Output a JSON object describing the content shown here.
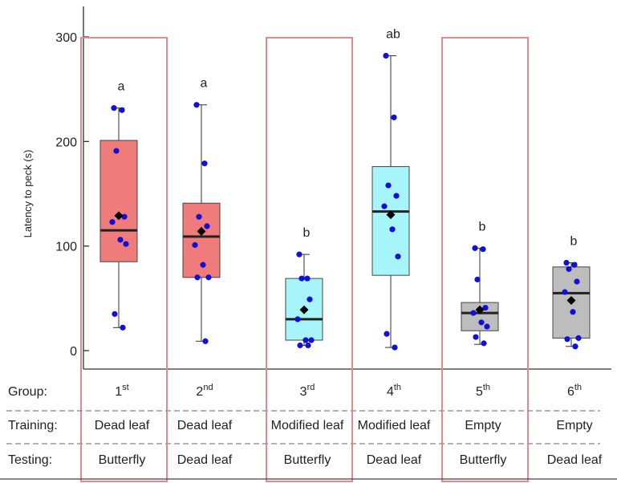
{
  "chart_data": {
    "type": "box",
    "ylabel": "Latency to peck (s)",
    "ylim": [
      0,
      300
    ],
    "yticks": [
      0,
      100,
      200,
      300
    ],
    "row_labels": {
      "group": "Group:",
      "training": "Training:",
      "testing": "Testing:"
    },
    "colors": {
      "dead_leaf": "#ef7b7b",
      "modified_leaf": "#a8f4fb",
      "empty": "#bdbdbd",
      "points": "#1010d8",
      "mean": "#000000",
      "highlight": "#e8878c"
    },
    "groups": [
      {
        "ordinal": "1",
        "suffix": "st",
        "training": "Dead leaf",
        "testing": "Butterfly",
        "color": "#ef7b7b",
        "min": 22,
        "q1": 85,
        "median": 115,
        "q3": 201,
        "max": 232,
        "mean": 129,
        "letter": "a",
        "highlighted": true,
        "points": [
          232,
          230,
          191,
          128,
          123,
          106,
          102,
          35,
          22
        ]
      },
      {
        "ordinal": "2",
        "suffix": "nd",
        "training": "Dead leaf",
        "testing": "Dead leaf",
        "color": "#ef7b7b",
        "min": 9,
        "q1": 70,
        "median": 109,
        "q3": 141,
        "max": 235,
        "mean": 114,
        "letter": "a",
        "highlighted": false,
        "points": [
          235,
          179,
          128,
          119,
          101,
          82,
          70,
          70,
          9
        ]
      },
      {
        "ordinal": "3",
        "suffix": "rd",
        "training": "Modified leaf",
        "testing": "Butterfly",
        "color": "#a8f4fb",
        "min": 5,
        "q1": 10,
        "median": 30,
        "q3": 69,
        "max": 92,
        "mean": 39,
        "letter": "b",
        "highlighted": true,
        "points": [
          92,
          69,
          69,
          49,
          30,
          10,
          10,
          5,
          5
        ]
      },
      {
        "ordinal": "4",
        "suffix": "th",
        "training": "Modified leaf",
        "testing": "Dead leaf",
        "color": "#a8f4fb",
        "min": 3,
        "q1": 72,
        "median": 133,
        "q3": 176,
        "max": 282,
        "mean": 130,
        "letter": "ab",
        "highlighted": false,
        "points": [
          282,
          223,
          158,
          148,
          138,
          116,
          90,
          16,
          3
        ]
      },
      {
        "ordinal": "5",
        "suffix": "th",
        "training": "Empty",
        "testing": "Butterfly",
        "color": "#bdbdbd",
        "min": 6,
        "q1": 19,
        "median": 36,
        "q3": 46,
        "max": 98,
        "mean": 39,
        "letter": "b",
        "highlighted": true,
        "points": [
          98,
          97,
          68,
          41,
          36,
          27,
          23,
          13,
          7
        ]
      },
      {
        "ordinal": "6",
        "suffix": "th",
        "training": "Empty",
        "testing": "Dead leaf",
        "color": "#bdbdbd",
        "min": 4,
        "q1": 12,
        "median": 55,
        "q3": 80,
        "max": 84,
        "mean": 48,
        "letter": "b",
        "highlighted": false,
        "points": [
          84,
          82,
          78,
          66,
          56,
          37,
          12,
          11,
          4
        ]
      }
    ]
  }
}
